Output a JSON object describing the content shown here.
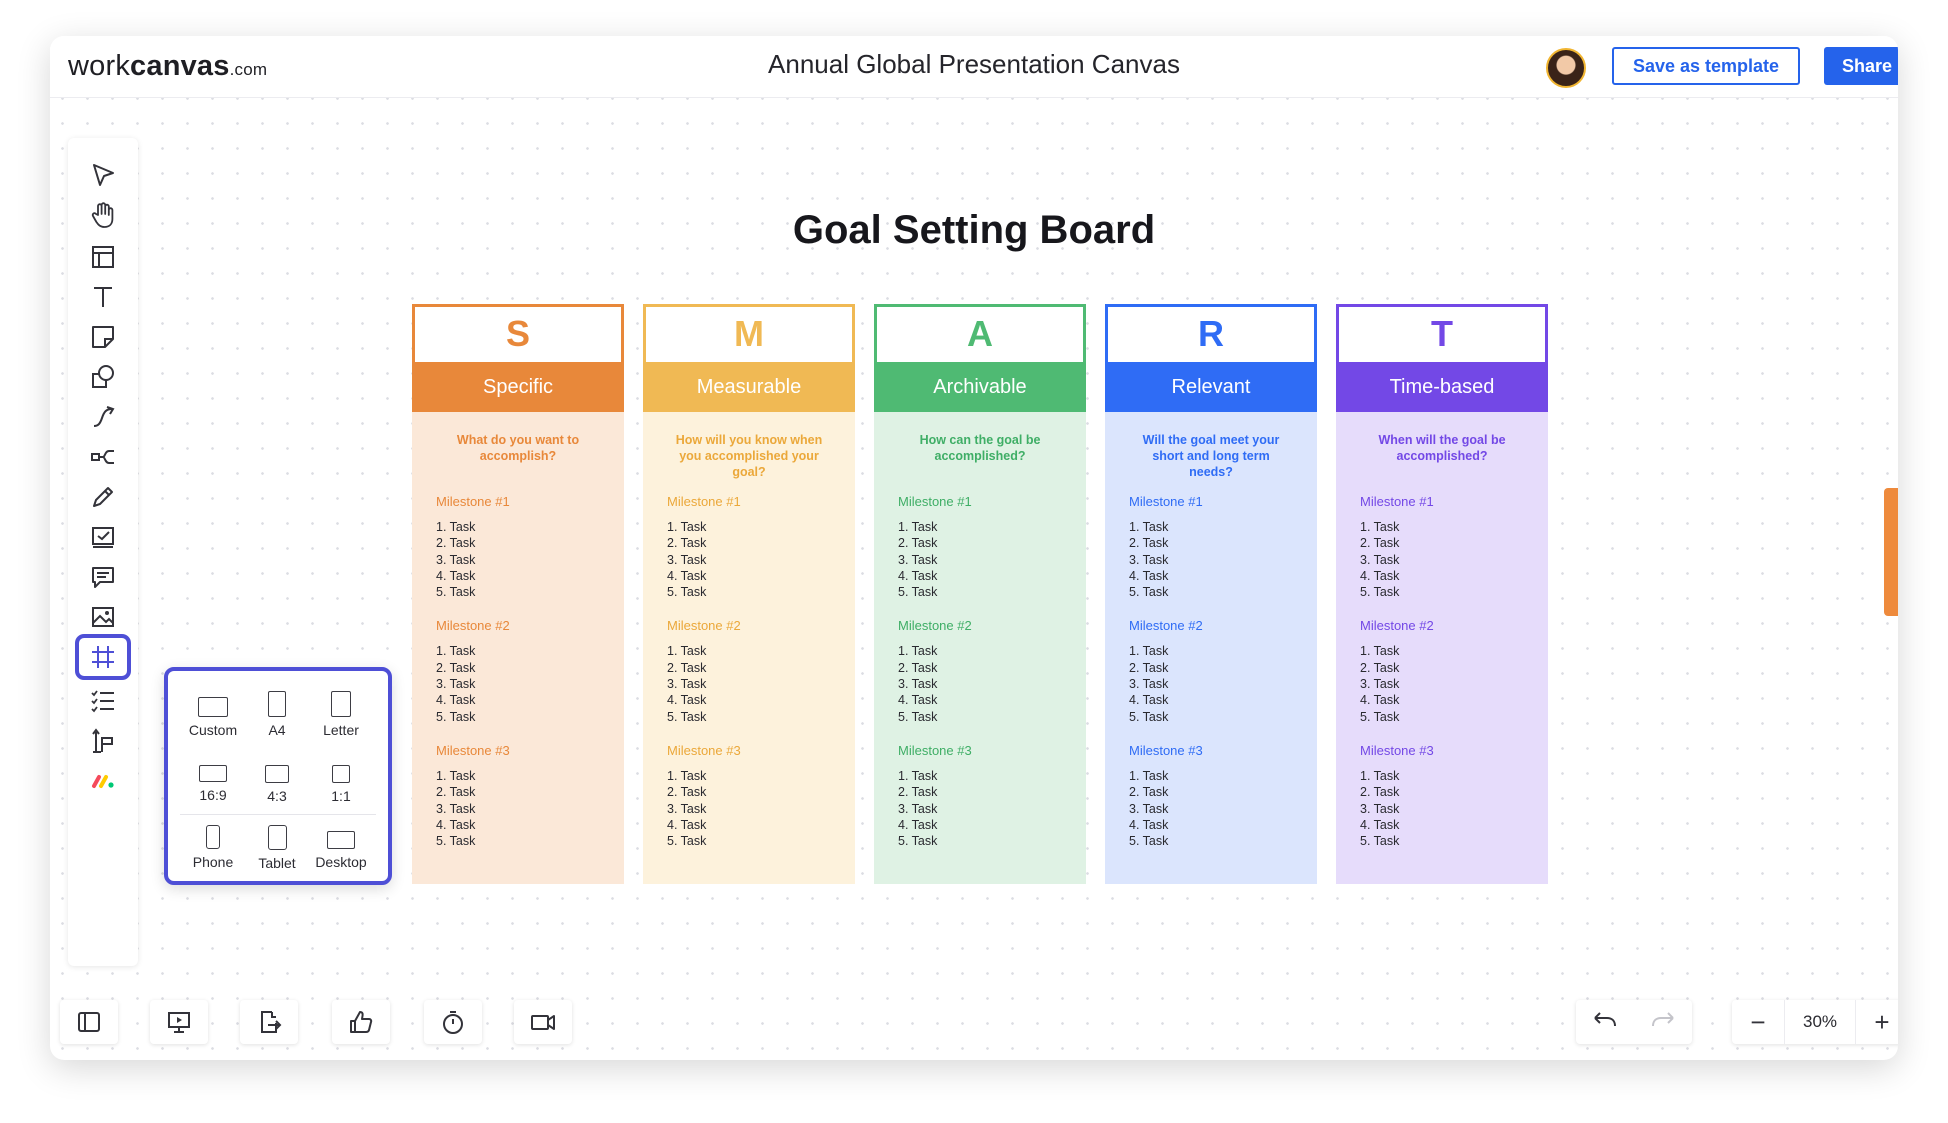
{
  "header": {
    "logo_main": "work",
    "logo_bold": "canvas",
    "logo_suffix": ".com",
    "title": "Annual Global Presentation Canvas",
    "save_template_label": "Save as template",
    "share_label": "Share"
  },
  "toolbar": {
    "tools": [
      "select-tool",
      "hand-tool",
      "layout-tool",
      "text-tool",
      "sticky-note-tool",
      "shapes-tool",
      "connector-tool",
      "mindmap-tool",
      "pen-tool",
      "checkbox-tool",
      "comment-tool",
      "image-tool",
      "frame-tool",
      "list-tool",
      "template-tool",
      "monday-apps"
    ],
    "active_tool": "frame-tool"
  },
  "frames_menu": {
    "options": [
      {
        "label": "Custom"
      },
      {
        "label": "A4"
      },
      {
        "label": "Letter"
      },
      {
        "label": "16:9"
      },
      {
        "label": "4:3"
      },
      {
        "label": "1:1"
      },
      {
        "label": "Phone"
      },
      {
        "label": "Tablet"
      },
      {
        "label": "Desktop"
      }
    ]
  },
  "board": {
    "title": "Goal Setting Board",
    "columns": [
      {
        "letter": "S",
        "name": "Specific",
        "question": "What do you want to accomplish?",
        "accent": "#e8883a",
        "light": "#fbe8d8",
        "text_accent": "#e8883a",
        "milestones": [
          {
            "title": "Milestone #1",
            "tasks": [
              "1. Task",
              "2. Task",
              "3. Task",
              "4. Task",
              "5. Task"
            ]
          },
          {
            "title": "Milestone #2",
            "tasks": [
              "1. Task",
              "2. Task",
              "3. Task",
              "4. Task",
              "5. Task"
            ]
          },
          {
            "title": "Milestone #3",
            "tasks": [
              "1. Task",
              "2. Task",
              "3. Task",
              "4. Task",
              "5. Task"
            ]
          }
        ]
      },
      {
        "letter": "M",
        "name": "Measurable",
        "question": "How will you know when you accomplished your goal?",
        "accent": "#f0b954",
        "light": "#fdf2dc",
        "text_accent": "#eba83a",
        "milestones": [
          {
            "title": "Milestone #1",
            "tasks": [
              "1. Task",
              "2. Task",
              "3. Task",
              "4. Task",
              "5. Task"
            ]
          },
          {
            "title": "Milestone #2",
            "tasks": [
              "1. Task",
              "2. Task",
              "3. Task",
              "4. Task",
              "5. Task"
            ]
          },
          {
            "title": "Milestone #3",
            "tasks": [
              "1. Task",
              "2. Task",
              "3. Task",
              "4. Task",
              "5. Task"
            ]
          }
        ]
      },
      {
        "letter": "A",
        "name": "Archivable",
        "question": "How can the goal be accomplished?",
        "accent": "#4fba73",
        "light": "#dff2e4",
        "text_accent": "#3fae66",
        "milestones": [
          {
            "title": "Milestone #1",
            "tasks": [
              "1. Task",
              "2. Task",
              "3. Task",
              "4. Task",
              "5. Task"
            ]
          },
          {
            "title": "Milestone #2",
            "tasks": [
              "1. Task",
              "2. Task",
              "3. Task",
              "4. Task",
              "5. Task"
            ]
          },
          {
            "title": "Milestone #3",
            "tasks": [
              "1. Task",
              "2. Task",
              "3. Task",
              "4. Task",
              "5. Task"
            ]
          }
        ]
      },
      {
        "letter": "R",
        "name": "Relevant",
        "question": "Will the goal meet your short and long term needs?",
        "accent": "#2f6cf5",
        "light": "#dbe5fd",
        "text_accent": "#2f6cf5",
        "milestones": [
          {
            "title": "Milestone #1",
            "tasks": [
              "1. Task",
              "2. Task",
              "3. Task",
              "4. Task",
              "5. Task"
            ]
          },
          {
            "title": "Milestone #2",
            "tasks": [
              "1. Task",
              "2. Task",
              "3. Task",
              "4. Task",
              "5. Task"
            ]
          },
          {
            "title": "Milestone #3",
            "tasks": [
              "1. Task",
              "2. Task",
              "3. Task",
              "4. Task",
              "5. Task"
            ]
          }
        ]
      },
      {
        "letter": "T",
        "name": "Time-based",
        "question": "When will the goal be accomplished?",
        "accent": "#7348e6",
        "light": "#e6dcfb",
        "text_accent": "#7348e6",
        "milestones": [
          {
            "title": "Milestone #1",
            "tasks": [
              "1. Task",
              "2. Task",
              "3. Task",
              "4. Task",
              "5. Task"
            ]
          },
          {
            "title": "Milestone #2",
            "tasks": [
              "1. Task",
              "2. Task",
              "3. Task",
              "4. Task",
              "5. Task"
            ]
          },
          {
            "title": "Milestone #3",
            "tasks": [
              "1. Task",
              "2. Task",
              "3. Task",
              "4. Task",
              "5. Task"
            ]
          }
        ]
      }
    ]
  },
  "bottombar": {
    "buttons": [
      "sidebar-icon",
      "presentation-icon",
      "export-icon",
      "thumbs-up-icon",
      "timer-icon",
      "video-icon"
    ],
    "zoom_level": "30%",
    "zoom_out_label": "−",
    "zoom_in_label": "+"
  }
}
